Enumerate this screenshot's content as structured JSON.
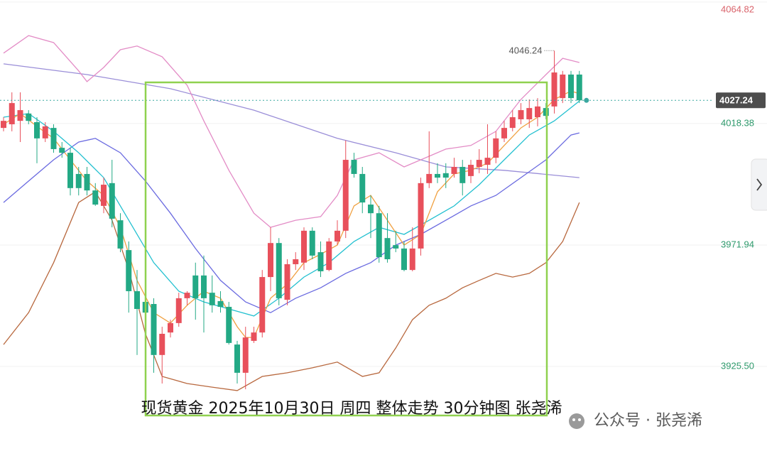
{
  "chart_data": {
    "type": "candlestick",
    "caption": "现货黄金 2025年10月30日 周四 整体走势 30分钟图 张尧浠",
    "watermark": "公众号 · 张尧浠",
    "up_color": "#e8505b",
    "down_color": "#23a985",
    "xlim": [
      -0.4255,
      84.68
    ],
    "ylim": [
      3893.2,
      4065.6
    ],
    "yticks": [
      4064.82,
      4018.38,
      3971.94,
      {
        "value": 3925.5,
        "label": "3925.50"
      }
    ],
    "grid": true,
    "last_price": 4027.24,
    "high_label": 4046.24,
    "candles": {
      "open": [
        4016.7,
        4018.1,
        4019.4,
        4022.2,
        4018.9,
        4012.7,
        4016.7,
        4009.1,
        4007.2,
        3999.1,
        3999.1,
        3992.8,
        3986.9,
        3995.6,
        3981.4,
        3970.0,
        3954.3,
        3950.2,
        3949.4,
        3929.9,
        3938.5,
        3942.1,
        3951.6,
        3960.3,
        3960.3,
        3953.7,
        3950.5,
        3948.3,
        3933.9,
        3923.1,
        3935.3,
        3938.5,
        3959.7,
        3972.7,
        3951.0,
        3964.6,
        3965.2,
        3977.4,
        3969.2,
        3962.4,
        3973.3,
        3977.4,
        4004.5,
        3999.1,
        3987.4,
        3984.1,
        3974.6,
        3971.9,
        3970.6,
        3962.4,
        3970.6,
        3995.6,
        3999.1,
        3999.4,
        3999.1,
        4001.8,
        3998.3,
        4001.8,
        4002.6,
        4005.3,
        4012.7,
        4016.7,
        4020.0,
        4020.0,
        4020.8,
        4024.3,
        4024.9,
        4028.1,
        4037.1,
        4037.1
      ],
      "high": [
        4020.8,
        4030.3,
        4030.3,
        4023.5,
        4020.8,
        4018.9,
        4018.1,
        4011.3,
        4009.1,
        4001.8,
        4001.8,
        3995.6,
        3997.7,
        4004.5,
        3984.1,
        3973.3,
        3962.4,
        3954.3,
        3951.6,
        3940.7,
        3943.4,
        3953.7,
        3954.3,
        3965.2,
        3967.9,
        3960.3,
        3954.3,
        3950.2,
        3935.3,
        3940.7,
        3940.7,
        3962.4,
        3978.7,
        3974.6,
        3966.5,
        3969.2,
        3978.7,
        3978.7,
        3973.3,
        3974.6,
        3981.4,
        4011.9,
        4007.2,
        4001.8,
        3990.9,
        3986.9,
        3984.1,
        3977.4,
        3973.3,
        3978.7,
        3997.7,
        4015.4,
        4003.2,
        4003.2,
        4005.3,
        4004.5,
        4004.5,
        4008.6,
        4018.1,
        4015.4,
        4019.4,
        4023.5,
        4026.2,
        4027.6,
        4028.1,
        4026.2,
        4046.24,
        4038.5,
        4038.5,
        4038.5
      ],
      "low": [
        4015.4,
        4015.4,
        4011.3,
        4018.1,
        4003.2,
        4011.3,
        4007.2,
        4005.3,
        3990.9,
        3990.9,
        3990.9,
        3986.9,
        3984.1,
        3978.7,
        3969.2,
        3946.1,
        3929.9,
        3934.5,
        3923.1,
        3919.0,
        3936.6,
        3940.7,
        3948.9,
        3943.4,
        3938.5,
        3946.1,
        3946.1,
        3933.9,
        3919.0,
        3916.8,
        3934.5,
        3936.6,
        3954.3,
        3948.9,
        3948.9,
        3962.4,
        3962.4,
        3966.5,
        3959.7,
        3961.9,
        3971.9,
        3974.6,
        3997.7,
        3984.1,
        3974.6,
        3965.2,
        3965.2,
        3969.2,
        3961.9,
        3961.9,
        3967.9,
        3993.7,
        3995.6,
        3993.7,
        3997.7,
        3990.9,
        3995.6,
        3999.4,
        3999.1,
        4003.2,
        4011.3,
        4015.4,
        4018.1,
        4016.7,
        4017.3,
        4020.0,
        4022.2,
        4026.2,
        4026.2,
        4026.2
      ],
      "close": [
        4019.4,
        4026.2,
        4023.5,
        4019.4,
        4012.7,
        4017.3,
        4008.6,
        4007.2,
        3993.7,
        3993.7,
        3992.8,
        3987.4,
        3995.0,
        3982.0,
        3970.6,
        3954.3,
        3947.5,
        3946.1,
        3929.9,
        3938.0,
        3942.1,
        3951.6,
        3953.7,
        3951.6,
        3951.6,
        3948.9,
        3948.3,
        3934.5,
        3923.1,
        3936.6,
        3938.5,
        3959.7,
        3972.7,
        3951.6,
        3964.6,
        3966.5,
        3977.4,
        3967.9,
        3961.9,
        3973.3,
        3977.4,
        4004.5,
        3999.1,
        3988.2,
        3984.1,
        3967.3,
        3966.5,
        3970.6,
        3962.4,
        3970.6,
        3995.6,
        3999.1,
        3997.7,
        3997.7,
        4001.8,
        3995.6,
        4002.6,
        4004.5,
        4005.3,
        4012.7,
        4016.7,
        4020.8,
        4023.5,
        4024.3,
        4024.9,
        4021.3,
        4037.9,
        4037.1,
        4028.1,
        4027.24
      ]
    },
    "lines": [
      {
        "color": "#9a8ed8",
        "x": [
          0,
          10,
          20,
          30,
          40,
          47,
          53,
          60,
          69
        ],
        "values": [
          4041.2,
          4037.1,
          4031.7,
          4023.5,
          4012.7,
          4007.2,
          4001.8,
          4000.5,
          3997.7
        ]
      },
      {
        "color": "#e38cc6",
        "x": [
          0,
          3,
          6,
          9,
          10,
          12,
          14,
          16,
          19,
          22,
          24,
          27,
          30,
          32,
          35,
          38,
          40,
          42,
          45,
          48,
          50,
          53,
          56,
          59,
          62,
          65,
          67,
          69
        ],
        "values": [
          4045.3,
          4052.0,
          4049.3,
          4038.5,
          4034.4,
          4039.8,
          4046.6,
          4048.0,
          4043.9,
          4033.0,
          4019.4,
          4000.5,
          3984.1,
          3978.7,
          3981.4,
          3982.8,
          3990.9,
          4004.5,
          4007.2,
          4001.8,
          4004.5,
          4008.6,
          4010.0,
          4015.4,
          4027.6,
          4037.1,
          4043.3,
          4041.7
        ]
      },
      {
        "color": "#b8683e",
        "x": [
          0,
          3,
          6,
          9,
          11,
          13,
          15,
          17,
          19,
          22,
          25,
          28,
          31,
          34,
          37,
          40,
          43,
          45,
          47,
          49,
          51,
          53,
          55,
          57,
          59,
          61,
          63,
          65,
          67,
          69
        ],
        "values": [
          3933.9,
          3946.1,
          3965.2,
          3988.2,
          3992.3,
          3981.4,
          3962.4,
          3938.0,
          3921.7,
          3919.0,
          3917.6,
          3916.3,
          3921.7,
          3923.1,
          3925.0,
          3927.2,
          3921.7,
          3923.1,
          3932.6,
          3943.4,
          3948.9,
          3951.6,
          3955.6,
          3958.4,
          3961.1,
          3959.7,
          3961.1,
          3965.2,
          3973.3,
          3988.2
        ]
      },
      {
        "color": "#6a6ae0",
        "x": [
          0,
          3,
          6,
          9,
          11,
          14,
          17,
          20,
          23,
          26,
          29,
          32,
          35,
          38,
          41,
          44,
          47,
          50,
          53,
          56,
          59,
          62,
          65,
          68,
          69
        ],
        "values": [
          3988.2,
          3996.4,
          4004.5,
          4011.3,
          4012.7,
          4007.2,
          3996.4,
          3984.1,
          3970.6,
          3958.4,
          3950.2,
          3946.1,
          3951.6,
          3955.6,
          3961.1,
          3965.2,
          3971.9,
          3976.0,
          3981.4,
          3986.9,
          3990.9,
          3997.7,
          4004.5,
          4014.0,
          4014.8
        ]
      },
      {
        "color": "#22c0d0",
        "x": [
          0,
          3,
          6,
          9,
          12,
          15,
          18,
          21,
          24,
          27,
          30,
          33,
          36,
          39,
          42,
          45,
          48,
          51,
          54,
          57,
          60,
          63,
          66,
          69
        ],
        "values": [
          4020.8,
          4022.2,
          4015.4,
          4007.2,
          3997.7,
          3981.4,
          3965.2,
          3954.3,
          3950.2,
          3947.5,
          3944.8,
          3951.6,
          3959.7,
          3965.2,
          3973.3,
          3978.7,
          3976.0,
          3981.4,
          3986.9,
          3995.0,
          4004.5,
          4014.0,
          4019.4,
          4027.0
        ]
      },
      {
        "color": "#f0a040",
        "x": [
          0,
          2,
          4,
          6,
          8,
          10,
          12,
          14,
          16,
          18,
          20,
          22,
          24,
          26,
          28,
          29,
          30,
          32,
          34,
          36,
          38,
          40,
          42,
          44,
          46,
          48,
          50,
          52,
          54,
          56,
          58,
          60,
          62,
          64,
          66,
          68,
          69
        ],
        "values": [
          4018.1,
          4022.2,
          4017.3,
          4012.7,
          4004.5,
          3996.4,
          3990.9,
          3978.7,
          3958.4,
          3946.1,
          3942.1,
          3948.9,
          3954.3,
          3951.6,
          3940.7,
          3936.6,
          3936.6,
          3951.6,
          3957.0,
          3965.2,
          3968.4,
          3971.9,
          3986.9,
          3990.9,
          3981.4,
          3971.9,
          3976.0,
          3992.3,
          3999.1,
          4000.5,
          4003.2,
          4010.0,
          4016.7,
          4020.8,
          4027.6,
          4030.8,
          4029.8
        ]
      }
    ]
  }
}
